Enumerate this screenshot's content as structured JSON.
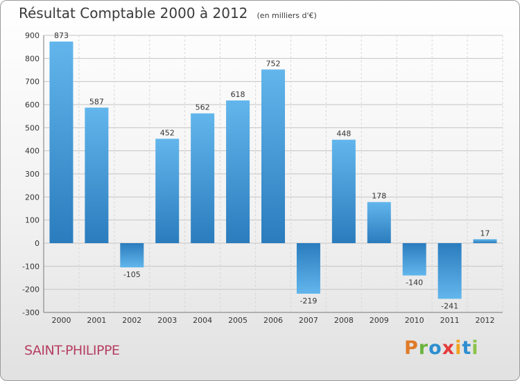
{
  "title": "Résultat Comptable 2000 à 2012",
  "subtitle": "(en milliers d'€)",
  "commune": "SAINT-PHILIPPE",
  "brand": "Proxiti",
  "colors": {
    "bar_top": "#62b6ec",
    "bar_bottom": "#2a7cbd",
    "grid": "#c4c4c4",
    "text": "#333333",
    "commune": "#b53f63",
    "brand_letters": [
      "#e07a27",
      "#6cb33e",
      "#2e8ed0",
      "#e43a3a",
      "#f0a420",
      "#2e8ed0",
      "#8bc34a"
    ]
  },
  "chart_data": {
    "type": "bar",
    "title": "Résultat Comptable 2000 à 2012",
    "subtitle": "(en milliers d'€)",
    "categories": [
      "2000",
      "2001",
      "2002",
      "2003",
      "2004",
      "2005",
      "2006",
      "2007",
      "2008",
      "2009",
      "2010",
      "2011",
      "2012"
    ],
    "values": [
      873,
      587,
      -105,
      452,
      562,
      618,
      752,
      -219,
      448,
      178,
      -140,
      -241,
      17
    ],
    "value_labels": [
      "873",
      "587",
      "-105",
      "452",
      "562",
      "618",
      "752",
      "-219",
      "448",
      "178",
      "-140",
      "-241",
      "17"
    ],
    "ylim": [
      -300,
      900
    ],
    "yticks": [
      900,
      800,
      700,
      600,
      500,
      400,
      300,
      200,
      100,
      0,
      -100,
      -200,
      -300
    ],
    "ytick_labels": [
      "900",
      "800",
      "700",
      "600",
      "500",
      "400",
      "300",
      "200",
      "100",
      "0",
      "-100",
      "-200",
      "-300"
    ],
    "grid": true,
    "legend": "none"
  }
}
